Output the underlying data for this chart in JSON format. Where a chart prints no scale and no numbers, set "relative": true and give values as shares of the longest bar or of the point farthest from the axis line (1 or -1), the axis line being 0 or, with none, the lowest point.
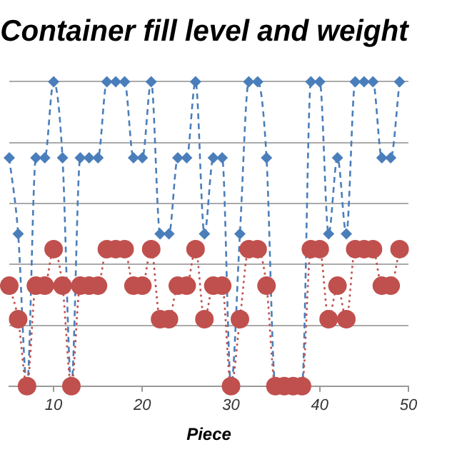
{
  "chart_data": {
    "type": "line",
    "title": "Container fill level and weight",
    "xlabel": "Piece",
    "relative": true,
    "grid": "y",
    "legend": false,
    "xlim": [
      5,
      50
    ],
    "xticks": [
      10,
      20,
      30,
      40,
      50
    ],
    "x": [
      5,
      6,
      7,
      8,
      9,
      10,
      11,
      12,
      13,
      14,
      15,
      16,
      17,
      18,
      19,
      20,
      21,
      22,
      23,
      24,
      25,
      26,
      27,
      28,
      29,
      30,
      31,
      32,
      33,
      34,
      35,
      36,
      37,
      38,
      39,
      40,
      41,
      42,
      43,
      44,
      45,
      46,
      47,
      48,
      49
    ],
    "series": [
      {
        "color": "#4a7ebb",
        "marker": "diamond",
        "line_style": "dashed",
        "values": [
          0.75,
          0.5,
          0,
          0.75,
          0.75,
          1,
          0.75,
          0,
          0.75,
          0.75,
          0.75,
          1,
          1,
          1,
          0.75,
          0.75,
          1,
          0.5,
          0.5,
          0.75,
          0.75,
          1,
          0.5,
          0.75,
          0.75,
          0,
          0.5,
          1,
          1,
          0.75,
          0,
          0,
          0,
          0,
          1,
          1,
          0.5,
          0.75,
          0.5,
          1,
          1,
          1,
          0.75,
          0.75,
          1
        ]
      },
      {
        "color": "#c0504d",
        "marker": "circle",
        "line_style": "dotted",
        "values": [
          0.33,
          0.22,
          0,
          0.33,
          0.33,
          0.45,
          0.33,
          0,
          0.33,
          0.33,
          0.33,
          0.45,
          0.45,
          0.45,
          0.33,
          0.33,
          0.45,
          0.22,
          0.22,
          0.33,
          0.33,
          0.45,
          0.22,
          0.33,
          0.33,
          0,
          0.22,
          0.45,
          0.45,
          0.33,
          0,
          0,
          0,
          0,
          0.45,
          0.45,
          0.22,
          0.33,
          0.22,
          0.45,
          0.45,
          0.45,
          0.33,
          0.33,
          0.45
        ]
      }
    ]
  }
}
